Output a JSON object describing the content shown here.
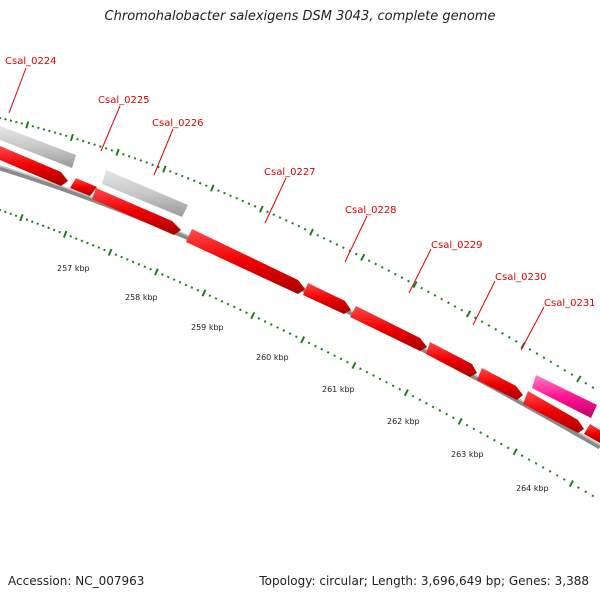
{
  "title": "Chromohalobacter salexigens DSM 3043, complete genome",
  "footer": {
    "accession": "Accession: NC_007963",
    "summary": "Topology: circular; Length: 3,696,649 bp; Genes: 3,388"
  },
  "colors": {
    "cds": "#ee0000",
    "rna": "#c8c8c8",
    "highlight": "#ff1493",
    "label": "#dd0000",
    "ticks": "#1a7f1a",
    "backbone": "#888888"
  },
  "gene_labels": [
    "Csal_0224",
    "Csal_0225",
    "Csal_0226",
    "Csal_0227",
    "Csal_0228",
    "Csal_0229",
    "Csal_0230",
    "Csal_0231"
  ],
  "kbp_labels": [
    "257 kbp",
    "258 kbp",
    "259 kbp",
    "260 kbp",
    "261 kbp",
    "262 kbp",
    "263 kbp",
    "264 kbp"
  ]
}
